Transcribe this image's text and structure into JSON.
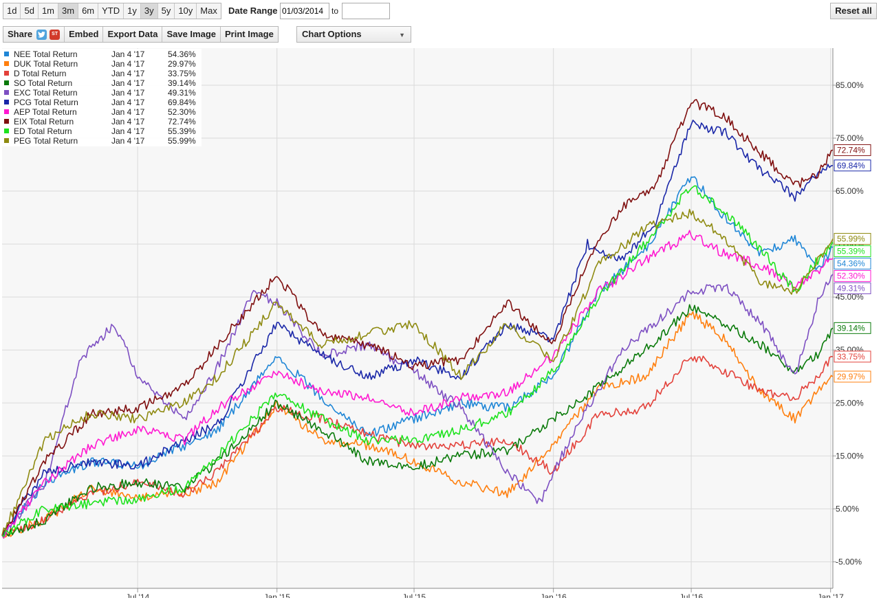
{
  "toolbar": {
    "ranges": [
      "1d",
      "5d",
      "1m",
      "3m",
      "6m",
      "YTD",
      "1y",
      "3y",
      "5y",
      "10y",
      "Max"
    ],
    "active_ranges": [
      "3m",
      "3y"
    ],
    "date_range_label": "Date Range",
    "date_from": "01/03/2014",
    "to_label": "to",
    "date_to": "",
    "reset_label": "Reset all",
    "share_label": "Share",
    "twitter_icon": "twitter-icon",
    "stocktwits_icon": "stocktwits-icon",
    "stocktwits_text": "ST",
    "embed_label": "Embed",
    "export_label": "Export Data",
    "save_image_label": "Save Image",
    "print_image_label": "Print Image",
    "chart_options_label": "Chart Options",
    "chevron_icon": "chevron-down-icon"
  },
  "chart_data": {
    "type": "line",
    "x_range": [
      "2014-01-03",
      "2017-01-04"
    ],
    "ylim": [
      -10,
      92
    ],
    "y_ticks": [
      -5,
      5,
      15,
      25,
      35,
      45,
      55,
      65,
      75,
      85
    ],
    "y_tick_labels": [
      "-5.00%",
      "5.00%",
      "15.00%",
      "25.00%",
      "35.00%",
      "45.00%",
      "55.00%",
      "65.00%",
      "75.00%",
      "85.00%"
    ],
    "x_ticks": [
      "2014-07-01",
      "2015-01-01",
      "2015-07-01",
      "2016-01-01",
      "2016-07-01",
      "2017-01-01"
    ],
    "x_tick_labels": [
      "Jul '14",
      "Jan '15",
      "Jul '15",
      "Jan '16",
      "Jul '16",
      "Jan '17"
    ],
    "grid": true,
    "legend_position": "top-left",
    "legend_date": "Jan 4 '17",
    "series": [
      {
        "name": "NEE Total Return",
        "color": "#1f86d6",
        "last": 54.36,
        "last_label": "54.36%",
        "points": [
          [
            "2014-01-03",
            0
          ],
          [
            "2014-03-01",
            10
          ],
          [
            "2014-05-01",
            14
          ],
          [
            "2014-07-01",
            13
          ],
          [
            "2014-09-01",
            17
          ],
          [
            "2014-10-15",
            20
          ],
          [
            "2015-01-01",
            34
          ],
          [
            "2015-03-01",
            26
          ],
          [
            "2015-05-01",
            19
          ],
          [
            "2015-07-01",
            22
          ],
          [
            "2015-09-01",
            25
          ],
          [
            "2015-11-01",
            24
          ],
          [
            "2016-01-01",
            30
          ],
          [
            "2016-03-01",
            46
          ],
          [
            "2016-05-01",
            54
          ],
          [
            "2016-07-01",
            68
          ],
          [
            "2016-08-15",
            60
          ],
          [
            "2016-10-01",
            53
          ],
          [
            "2016-11-15",
            56
          ],
          [
            "2016-12-15",
            50
          ],
          [
            "2017-01-04",
            54.36
          ]
        ]
      },
      {
        "name": "DUK Total Return",
        "color": "#ff7f0e",
        "last": 29.97,
        "last_label": "29.97%",
        "points": [
          [
            "2014-01-03",
            0
          ],
          [
            "2014-03-01",
            3
          ],
          [
            "2014-05-01",
            9
          ],
          [
            "2014-07-01",
            7
          ],
          [
            "2014-09-01",
            8
          ],
          [
            "2014-10-15",
            10
          ],
          [
            "2015-01-01",
            25
          ],
          [
            "2015-03-01",
            18
          ],
          [
            "2015-05-01",
            17
          ],
          [
            "2015-07-01",
            14
          ],
          [
            "2015-09-01",
            10
          ],
          [
            "2015-11-01",
            8
          ],
          [
            "2016-01-01",
            17
          ],
          [
            "2016-03-01",
            28
          ],
          [
            "2016-05-01",
            30
          ],
          [
            "2016-07-01",
            42
          ],
          [
            "2016-08-15",
            37
          ],
          [
            "2016-10-01",
            27
          ],
          [
            "2016-11-15",
            22
          ],
          [
            "2016-12-15",
            27
          ],
          [
            "2017-01-04",
            29.97
          ]
        ]
      },
      {
        "name": "D Total Return",
        "color": "#e3413a",
        "last": 33.75,
        "last_label": "33.75%",
        "points": [
          [
            "2014-01-03",
            0
          ],
          [
            "2014-03-01",
            3
          ],
          [
            "2014-05-01",
            8
          ],
          [
            "2014-07-01",
            10
          ],
          [
            "2014-09-01",
            8
          ],
          [
            "2014-10-15",
            12
          ],
          [
            "2015-01-01",
            24
          ],
          [
            "2015-03-01",
            22
          ],
          [
            "2015-05-01",
            19
          ],
          [
            "2015-07-01",
            17
          ],
          [
            "2015-09-01",
            17
          ],
          [
            "2015-11-01",
            18
          ],
          [
            "2016-01-01",
            12
          ],
          [
            "2016-03-01",
            23
          ],
          [
            "2016-05-01",
            24
          ],
          [
            "2016-07-01",
            34
          ],
          [
            "2016-08-15",
            31
          ],
          [
            "2016-10-01",
            27
          ],
          [
            "2016-11-15",
            26
          ],
          [
            "2016-12-15",
            30
          ],
          [
            "2017-01-04",
            33.75
          ]
        ]
      },
      {
        "name": "SO Total Return",
        "color": "#0a7a0a",
        "last": 39.14,
        "last_label": "39.14%",
        "points": [
          [
            "2014-01-03",
            0
          ],
          [
            "2014-03-01",
            3
          ],
          [
            "2014-05-01",
            9
          ],
          [
            "2014-07-01",
            10
          ],
          [
            "2014-09-01",
            9
          ],
          [
            "2014-10-15",
            14
          ],
          [
            "2015-01-01",
            25
          ],
          [
            "2015-03-01",
            20
          ],
          [
            "2015-05-01",
            14
          ],
          [
            "2015-07-01",
            13
          ],
          [
            "2015-09-01",
            15
          ],
          [
            "2015-11-01",
            16
          ],
          [
            "2016-01-01",
            22
          ],
          [
            "2016-03-01",
            28
          ],
          [
            "2016-05-01",
            35
          ],
          [
            "2016-07-01",
            43
          ],
          [
            "2016-08-15",
            40
          ],
          [
            "2016-10-01",
            36
          ],
          [
            "2016-11-15",
            31
          ],
          [
            "2016-12-15",
            34
          ],
          [
            "2017-01-04",
            39.14
          ]
        ]
      },
      {
        "name": "EXC Total Return",
        "color": "#7d4fc2",
        "last": 49.31,
        "last_label": "49.31%",
        "points": [
          [
            "2014-01-03",
            0
          ],
          [
            "2014-03-01",
            10
          ],
          [
            "2014-04-15",
            33
          ],
          [
            "2014-06-01",
            40
          ],
          [
            "2014-07-01",
            30
          ],
          [
            "2014-09-01",
            22
          ],
          [
            "2014-10-15",
            32
          ],
          [
            "2014-12-01",
            46
          ],
          [
            "2015-01-01",
            44
          ],
          [
            "2015-03-01",
            34
          ],
          [
            "2015-05-01",
            36
          ],
          [
            "2015-07-01",
            31
          ],
          [
            "2015-09-01",
            24
          ],
          [
            "2015-11-01",
            12
          ],
          [
            "2015-12-15",
            6
          ],
          [
            "2016-01-01",
            12
          ],
          [
            "2016-02-15",
            24
          ],
          [
            "2016-04-01",
            35
          ],
          [
            "2016-05-15",
            40
          ],
          [
            "2016-07-01",
            46
          ],
          [
            "2016-08-15",
            47
          ],
          [
            "2016-10-01",
            40
          ],
          [
            "2016-11-15",
            30
          ],
          [
            "2016-12-15",
            44
          ],
          [
            "2017-01-04",
            49.31
          ]
        ]
      },
      {
        "name": "PCG Total Return",
        "color": "#1a27a8",
        "last": 69.84,
        "last_label": "69.84%",
        "points": [
          [
            "2014-01-03",
            0
          ],
          [
            "2014-03-01",
            12
          ],
          [
            "2014-05-01",
            14
          ],
          [
            "2014-07-01",
            13
          ],
          [
            "2014-09-01",
            18
          ],
          [
            "2014-10-15",
            21
          ],
          [
            "2015-01-01",
            40
          ],
          [
            "2015-03-01",
            34
          ],
          [
            "2015-05-01",
            30
          ],
          [
            "2015-07-01",
            33
          ],
          [
            "2015-09-01",
            30
          ],
          [
            "2015-11-01",
            40
          ],
          [
            "2016-01-01",
            37
          ],
          [
            "2016-02-15",
            55
          ],
          [
            "2016-04-01",
            52
          ],
          [
            "2016-05-15",
            59
          ],
          [
            "2016-07-01",
            78
          ],
          [
            "2016-08-15",
            76
          ],
          [
            "2016-10-01",
            69
          ],
          [
            "2016-11-15",
            64
          ],
          [
            "2016-12-15",
            68
          ],
          [
            "2017-01-04",
            69.84
          ]
        ]
      },
      {
        "name": "AEP Total Return",
        "color": "#ff19d1",
        "last": 52.3,
        "last_label": "52.30%",
        "points": [
          [
            "2014-01-03",
            0
          ],
          [
            "2014-03-01",
            10
          ],
          [
            "2014-05-01",
            17
          ],
          [
            "2014-07-01",
            20
          ],
          [
            "2014-09-01",
            18
          ],
          [
            "2014-10-15",
            24
          ],
          [
            "2015-01-01",
            31
          ],
          [
            "2015-03-01",
            27
          ],
          [
            "2015-05-01",
            26
          ],
          [
            "2015-07-01",
            23
          ],
          [
            "2015-09-01",
            26
          ],
          [
            "2015-11-01",
            27
          ],
          [
            "2016-01-01",
            34
          ],
          [
            "2016-03-01",
            46
          ],
          [
            "2016-05-01",
            52
          ],
          [
            "2016-07-01",
            57
          ],
          [
            "2016-08-15",
            53
          ],
          [
            "2016-10-01",
            51
          ],
          [
            "2016-11-15",
            47
          ],
          [
            "2016-12-15",
            50
          ],
          [
            "2017-01-04",
            52.3
          ]
        ]
      },
      {
        "name": "EIX Total Return",
        "color": "#7f0f0f",
        "last": 72.74,
        "last_label": "72.74%",
        "points": [
          [
            "2014-01-03",
            0
          ],
          [
            "2014-03-01",
            14
          ],
          [
            "2014-05-01",
            23
          ],
          [
            "2014-07-01",
            24
          ],
          [
            "2014-09-01",
            28
          ],
          [
            "2014-10-15",
            36
          ],
          [
            "2014-12-01",
            44
          ],
          [
            "2015-01-01",
            49
          ],
          [
            "2015-03-01",
            38
          ],
          [
            "2015-05-01",
            36
          ],
          [
            "2015-07-01",
            32
          ],
          [
            "2015-09-01",
            33
          ],
          [
            "2015-11-01",
            44
          ],
          [
            "2016-01-01",
            36
          ],
          [
            "2016-02-15",
            52
          ],
          [
            "2016-04-01",
            62
          ],
          [
            "2016-05-15",
            66
          ],
          [
            "2016-07-01",
            82
          ],
          [
            "2016-08-15",
            79
          ],
          [
            "2016-10-01",
            72
          ],
          [
            "2016-11-15",
            66
          ],
          [
            "2016-12-15",
            68
          ],
          [
            "2017-01-04",
            72.74
          ]
        ]
      },
      {
        "name": "ED Total Return",
        "color": "#1de21d",
        "last": 55.39,
        "last_label": "55.39%",
        "points": [
          [
            "2014-01-03",
            0
          ],
          [
            "2014-03-01",
            5
          ],
          [
            "2014-05-01",
            6
          ],
          [
            "2014-07-01",
            7
          ],
          [
            "2014-09-01",
            9
          ],
          [
            "2014-10-15",
            15
          ],
          [
            "2015-01-01",
            27
          ],
          [
            "2015-03-01",
            22
          ],
          [
            "2015-05-01",
            18
          ],
          [
            "2015-07-01",
            18
          ],
          [
            "2015-09-01",
            20
          ],
          [
            "2015-11-01",
            23
          ],
          [
            "2016-01-01",
            31
          ],
          [
            "2016-03-01",
            45
          ],
          [
            "2016-05-01",
            55
          ],
          [
            "2016-07-01",
            66
          ],
          [
            "2016-08-15",
            61
          ],
          [
            "2016-10-01",
            54
          ],
          [
            "2016-11-15",
            46
          ],
          [
            "2016-12-15",
            52
          ],
          [
            "2017-01-04",
            55.39
          ]
        ]
      },
      {
        "name": "PEG Total Return",
        "color": "#8e8a10",
        "last": 55.99,
        "last_label": "55.99%",
        "points": [
          [
            "2014-01-03",
            0
          ],
          [
            "2014-03-01",
            18
          ],
          [
            "2014-05-01",
            23
          ],
          [
            "2014-07-01",
            22
          ],
          [
            "2014-09-01",
            25
          ],
          [
            "2014-10-15",
            30
          ],
          [
            "2015-01-01",
            44
          ],
          [
            "2015-03-01",
            36
          ],
          [
            "2015-05-01",
            38
          ],
          [
            "2015-07-01",
            40
          ],
          [
            "2015-09-01",
            30
          ],
          [
            "2015-11-01",
            40
          ],
          [
            "2016-01-01",
            33
          ],
          [
            "2016-03-01",
            51
          ],
          [
            "2016-05-01",
            58
          ],
          [
            "2016-07-01",
            61
          ],
          [
            "2016-08-15",
            56
          ],
          [
            "2016-10-01",
            48
          ],
          [
            "2016-11-15",
            46
          ],
          [
            "2016-12-15",
            52
          ],
          [
            "2017-01-04",
            55.99
          ]
        ]
      }
    ]
  }
}
